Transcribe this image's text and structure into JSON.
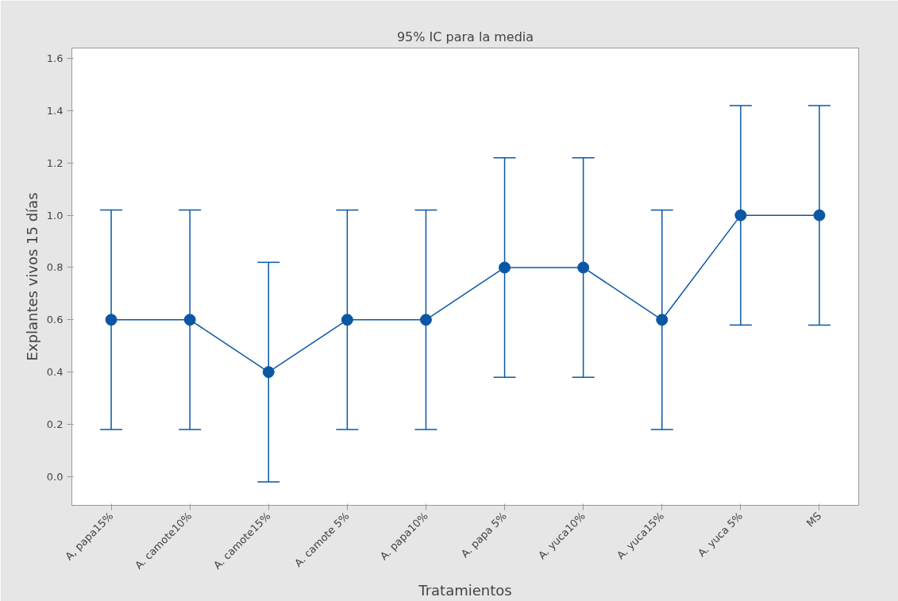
{
  "chart_data": {
    "type": "line",
    "title": "95% IC para la media",
    "xlabel": "Tratamientos",
    "ylabel": "Explantes vivos 15 días",
    "categories": [
      "A, papa15%",
      "A. camote10%",
      "A. camote15%",
      "A. camote 5%",
      "A. papa10%",
      "A. papa 5%",
      "A. yuca10%",
      "A. yuca15%",
      "A. yuca 5%",
      "MS"
    ],
    "series": [
      {
        "color": "#0b57a4",
        "values": [
          0.6,
          0.6,
          0.4,
          0.6,
          0.6,
          0.8,
          0.8,
          0.6,
          1.0,
          1.0
        ],
        "errors": [
          [
            0.18,
            1.02
          ],
          [
            0.18,
            1.02
          ],
          [
            -0.02,
            0.82
          ],
          [
            0.18,
            1.02
          ],
          [
            0.18,
            1.02
          ],
          [
            0.38,
            1.22
          ],
          [
            0.38,
            1.22
          ],
          [
            0.18,
            1.02
          ],
          [
            0.58,
            1.42
          ],
          [
            0.58,
            1.42
          ]
        ]
      }
    ],
    "ylim": [
      -0.11,
      1.64
    ],
    "yticks": [
      {
        "value": 0,
        "label": "0.0"
      },
      0.2,
      0.4,
      0.6,
      0.8,
      {
        "value": 1,
        "label": "1.0"
      },
      1.2,
      1.4,
      1.6
    ],
    "marker": "circle",
    "grid": false
  }
}
